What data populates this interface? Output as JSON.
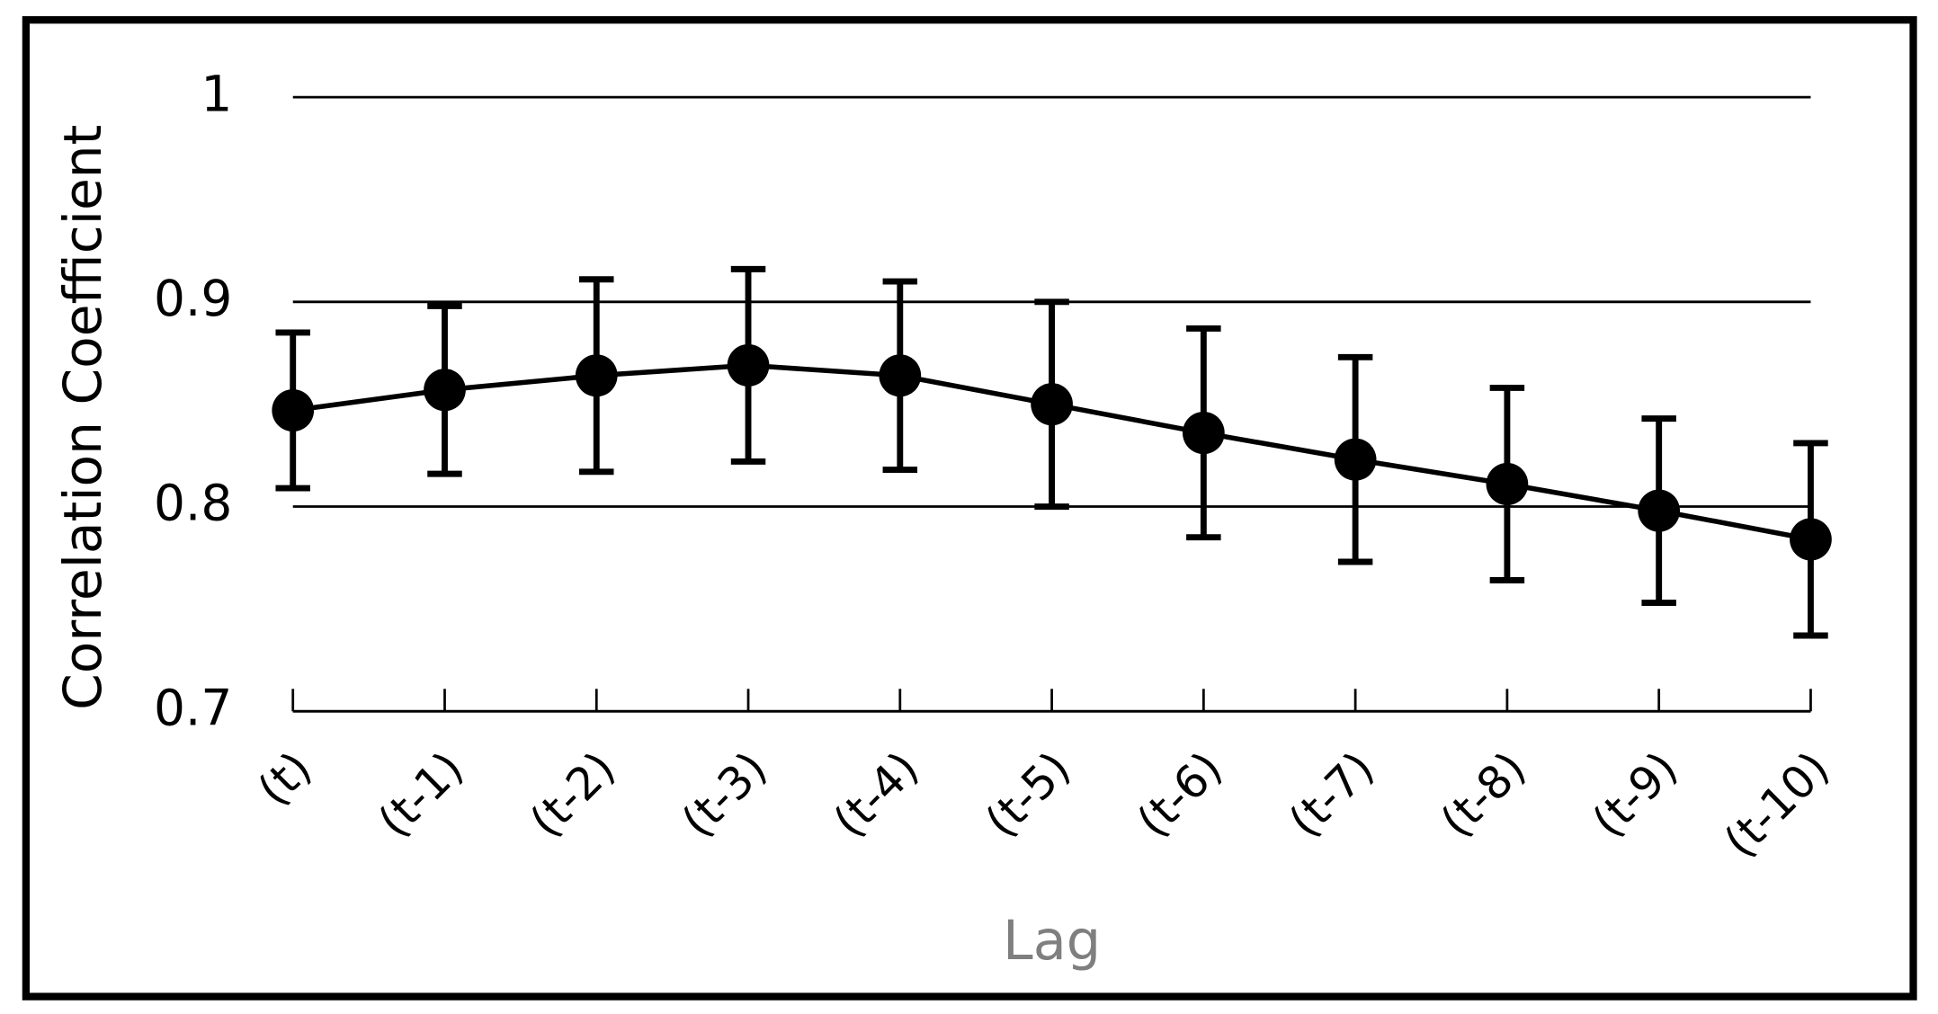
{
  "chart_data": {
    "type": "line",
    "x_label": "Lag",
    "y_label": "Correlation Coefficient",
    "categories": [
      "(t)",
      "(t-1)",
      "(t-2)",
      "(t-3)",
      "(t-4)",
      "(t-5)",
      "(t-6)",
      "(t-7)",
      "(t-8)",
      "(t-9)",
      "(t-10)"
    ],
    "series": [
      {
        "color": "#000000",
        "values": [
          0.847,
          0.857,
          0.864,
          0.869,
          0.864,
          0.85,
          0.836,
          0.823,
          0.811,
          0.798,
          0.784
        ],
        "errors": [
          0.038,
          0.041,
          0.047,
          0.047,
          0.046,
          0.05,
          0.051,
          0.05,
          0.047,
          0.045,
          0.047
        ]
      }
    ],
    "ylim": [
      0.7,
      1
    ],
    "yticks": [
      0.7,
      0.8,
      0.9,
      1
    ],
    "grid": true
  }
}
